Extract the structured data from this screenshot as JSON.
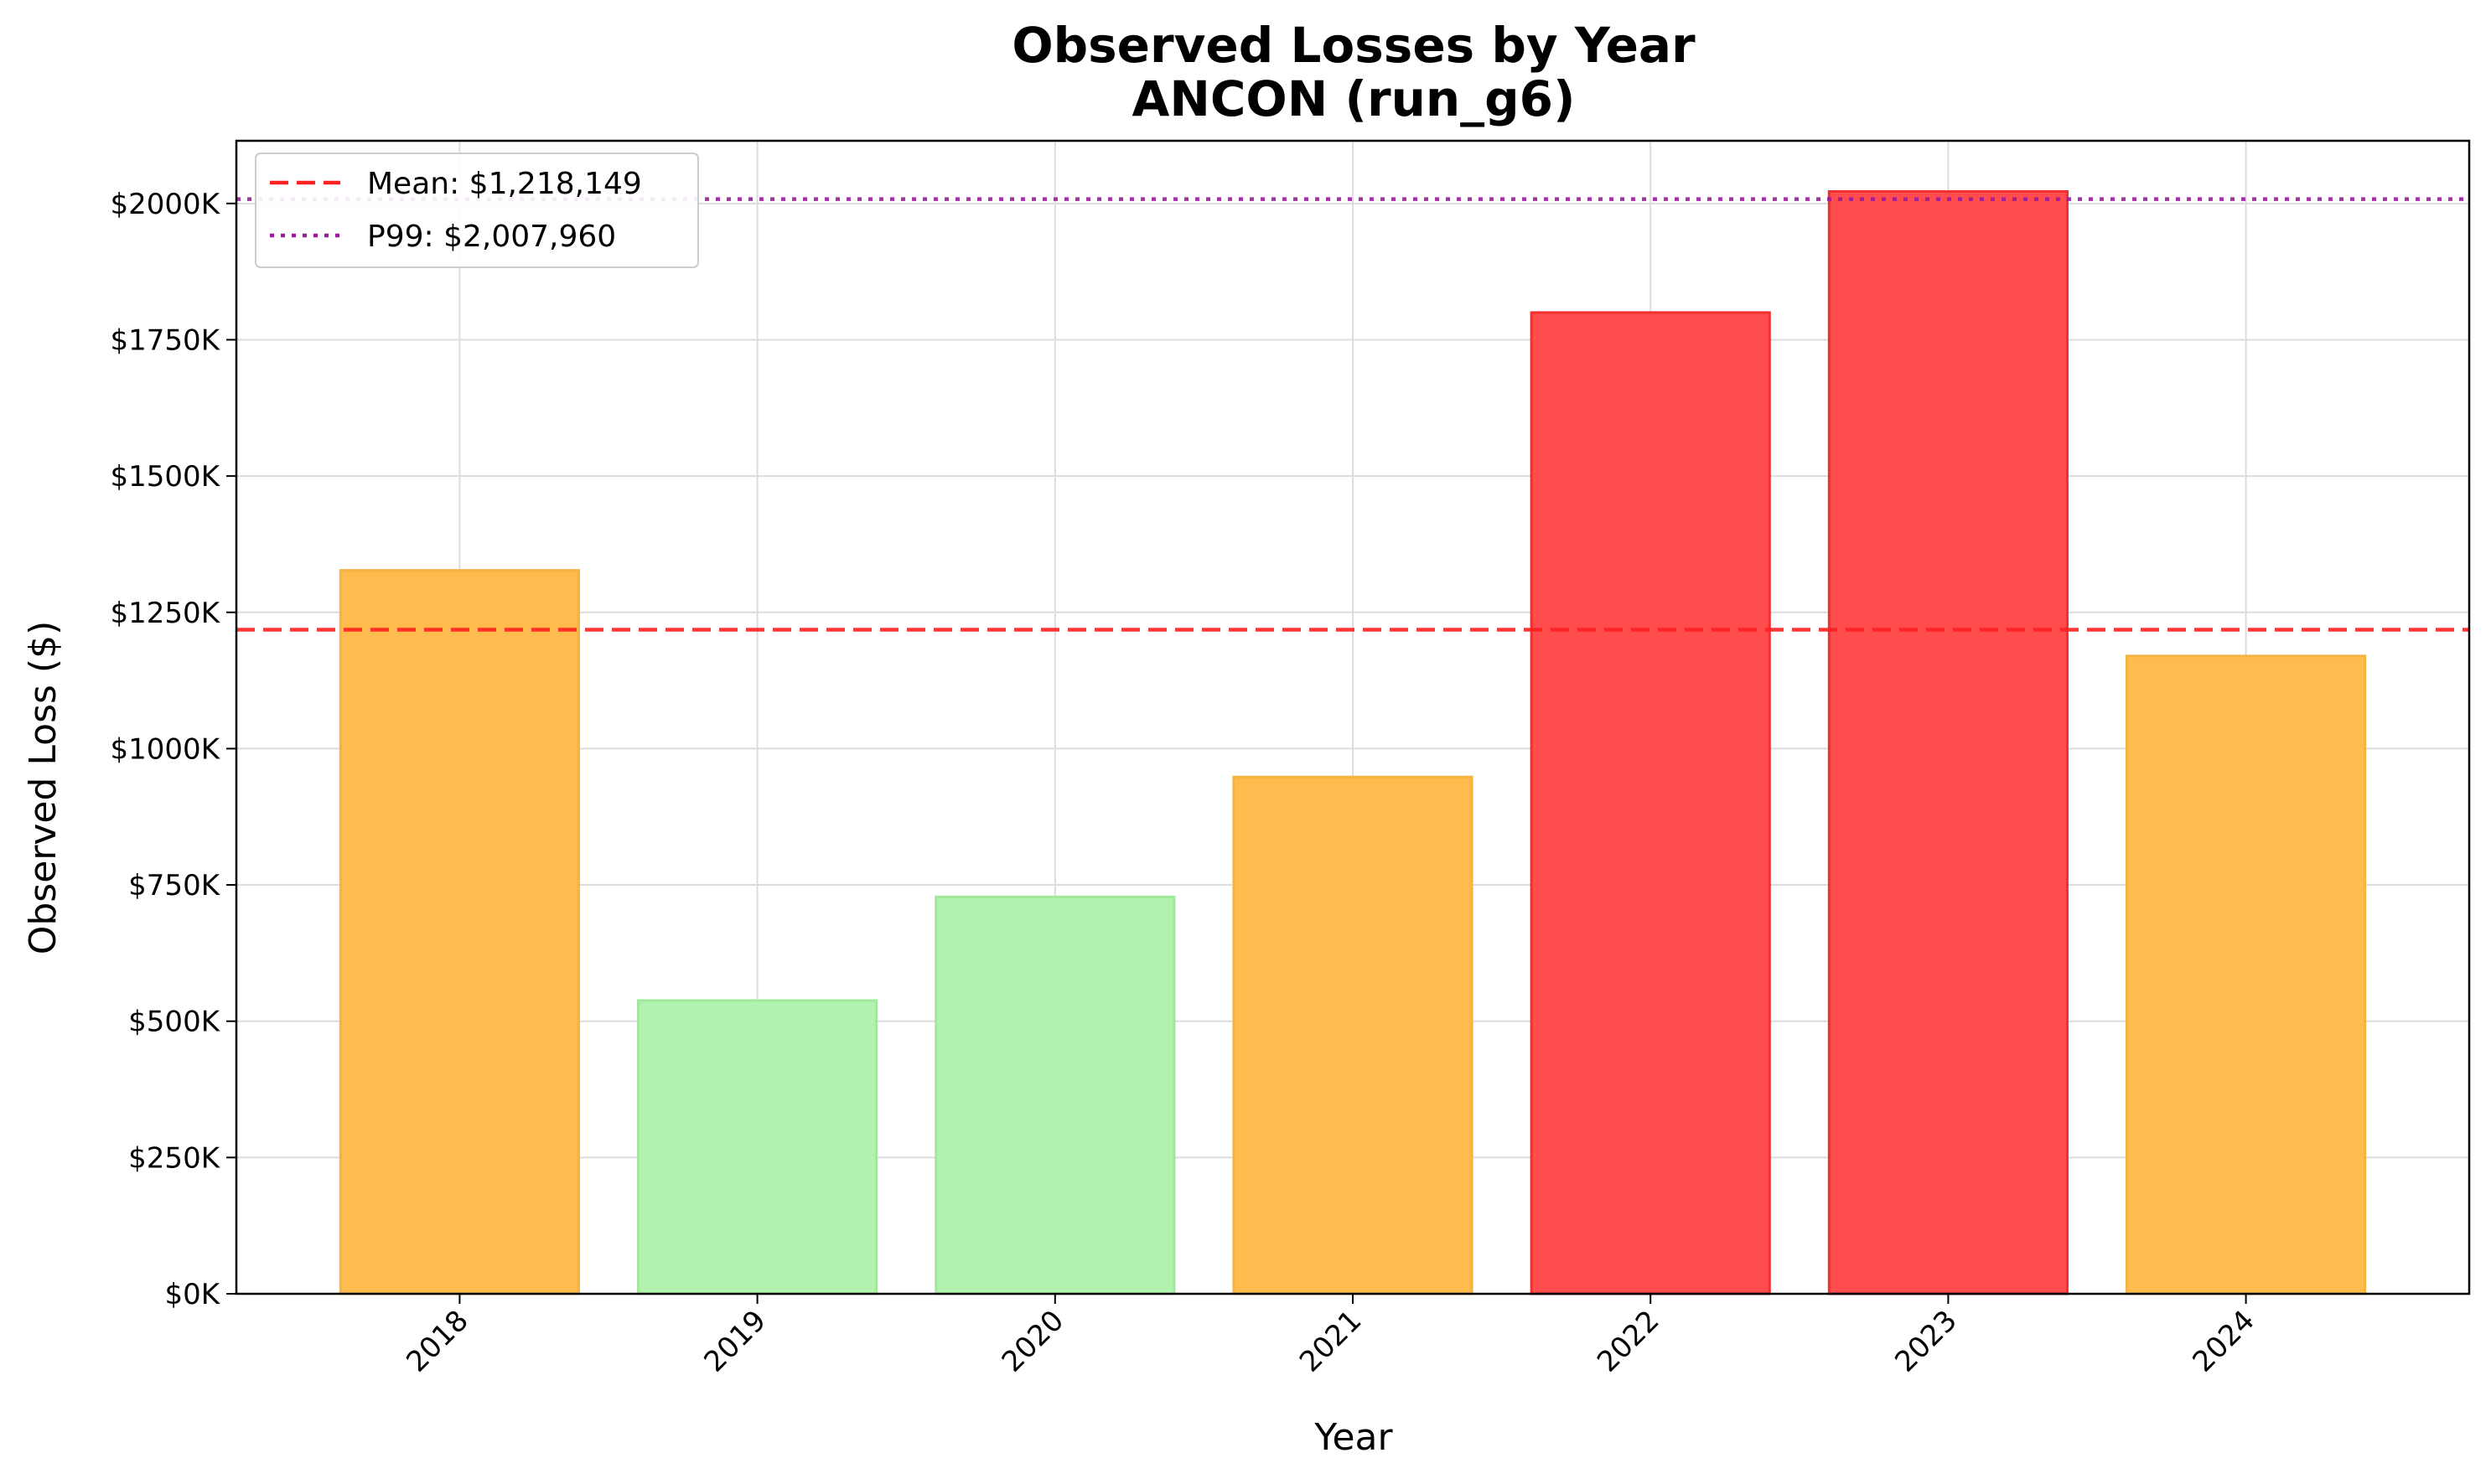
{
  "chart_data": {
    "type": "bar",
    "title": "Observed Losses by Year",
    "subtitle": "ANCON (run_g6)",
    "xlabel": "Year",
    "ylabel": "Observed Loss ($)",
    "categories": [
      "2018",
      "2019",
      "2020",
      "2021",
      "2022",
      "2023",
      "2024"
    ],
    "values": [
      1327000,
      538000,
      728000,
      948000,
      1800000,
      2022000,
      1170000
    ],
    "bar_colors": [
      "#FFBB4D",
      "#B1F2AE",
      "#B1F2AE",
      "#FFBB4D",
      "#FF4D4D",
      "#FF4D4D",
      "#FFBB4D"
    ],
    "bar_edge_colors": [
      "#F5B342",
      "#A0E89C",
      "#A0E89C",
      "#F5B342",
      "#F03030",
      "#F03030",
      "#F5B342"
    ],
    "ylim": [
      0,
      2115000
    ],
    "yticks": [
      0,
      250000,
      500000,
      750000,
      1000000,
      1250000,
      1500000,
      1750000,
      2000000
    ],
    "ytick_labels": [
      "$0K",
      "$250K",
      "$500K",
      "$750K",
      "$1000K",
      "$1250K",
      "$1500K",
      "$1750K",
      "$2000K"
    ],
    "grid": true,
    "reference_lines": [
      {
        "label": "Mean: $1,218,149",
        "value": 1218149,
        "color": "#FF2020",
        "style": "dashed"
      },
      {
        "label": "P99: $2,007,960",
        "value": 2007960,
        "color": "#9B1C9B",
        "style": "dotted"
      }
    ],
    "legend_position": "top-left"
  }
}
